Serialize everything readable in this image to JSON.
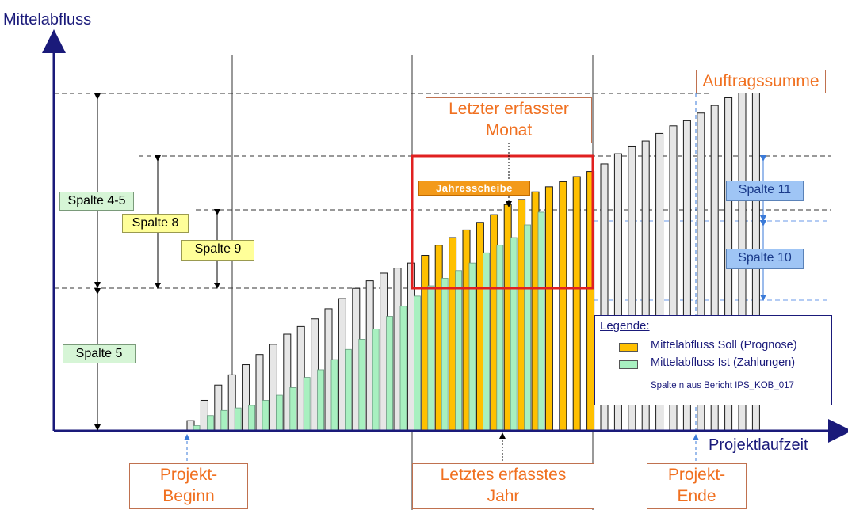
{
  "axes": {
    "y_label": "Mittelabfluss",
    "x_label": "Projektlaufzeit"
  },
  "labels": {
    "auftragssumme": "Auftragssumme",
    "letzter_monat": "Letzter erfasster Monat",
    "letzter_monat_line1": "Letzter erfasster",
    "letzter_monat_line2": "Monat",
    "jahresscheibe": "Jahresscheibe",
    "projekt_beginn_1": "Projekt-",
    "projekt_beginn_2": "Beginn",
    "letztes_jahr_1": "Letztes erfasstes",
    "letztes_jahr_2": "Jahr",
    "projekt_ende_1": "Projekt-",
    "projekt_ende_2": "Ende"
  },
  "columns": {
    "spalte_4_5": "Spalte 4-5",
    "spalte_5": "Spalte 5",
    "spalte_8": "Spalte 8",
    "spalte_9": "Spalte 9",
    "spalte_10": "Spalte 10",
    "spalte_11": "Spalte 11"
  },
  "legend": {
    "title": "Legende:",
    "soll": "Mittelabfluss Soll (Prognose)",
    "ist": "Mittelabfluss Ist (Zahlungen)",
    "source": "Spalte n aus Bericht IPS_KOB_017"
  },
  "colors": {
    "soll": "#ffc000",
    "soll_border": "#1a1a1a",
    "ist": "#a8f0c0",
    "gray": "#e6e6e6",
    "axis": "#1a1a7a",
    "red_box": "#e02020",
    "orange_text": "#f07020"
  },
  "chart_data": {
    "type": "bar",
    "series": [
      {
        "name": "Mittelabfluss Soll (Prognose)",
        "values": [
          0.04,
          0.12,
          0.18,
          0.22,
          0.26,
          0.3,
          0.34,
          0.38,
          0.41,
          0.44,
          0.48,
          0.52,
          0.56,
          0.59,
          0.62,
          0.64,
          0.66,
          0.69,
          0.73,
          0.76,
          0.79,
          0.82,
          0.85,
          0.89,
          0.91,
          0.94,
          0.96,
          0.98,
          1.0,
          1.02,
          1.05,
          1.09,
          1.12,
          1.14,
          1.17,
          1.2,
          1.22,
          1.25,
          1.28,
          1.31,
          1.33,
          1.35
        ]
      },
      {
        "name": "Mittelabfluss Ist (Zahlungen)",
        "values": [
          0.02,
          0.06,
          0.08,
          0.09,
          0.1,
          0.12,
          0.14,
          0.17,
          0.21,
          0.24,
          0.28,
          0.32,
          0.36,
          0.4,
          0.45,
          0.49,
          0.53,
          0.57,
          0.6,
          0.63,
          0.66,
          0.7,
          0.73,
          0.76,
          0.81,
          0.86
        ]
      }
    ]
  }
}
